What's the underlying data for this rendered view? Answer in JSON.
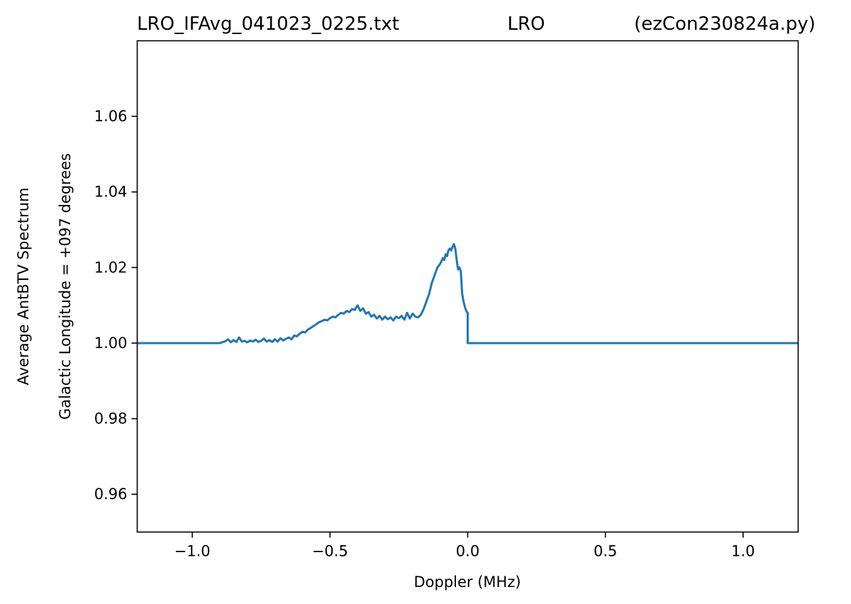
{
  "chart_data": {
    "type": "line",
    "title_left": "LRO_IFAvg_041023_0225.txt",
    "title_center": "LRO",
    "title_right": "(ezCon230824a.py)",
    "xlabel": "Doppler (MHz)",
    "ylabel_line1": "Average AntBTV Spectrum",
    "ylabel_line2": "Galactic Longitude = +097 degrees",
    "xlim": [
      -1.2,
      1.2
    ],
    "ylim": [
      0.95,
      1.08
    ],
    "xticks": [
      -1.0,
      -0.5,
      0.0,
      0.5,
      1.0
    ],
    "xtick_labels": [
      "−1.0",
      "−0.5",
      "0.0",
      "0.5",
      "1.0"
    ],
    "yticks": [
      0.96,
      0.98,
      1.0,
      1.02,
      1.04,
      1.06
    ],
    "ytick_labels": [
      "0.96",
      "0.98",
      "1.00",
      "1.02",
      "1.04",
      "1.06"
    ],
    "grid": false,
    "line_color": "#1f77b4",
    "series": [
      {
        "x": [
          -1.2,
          -0.9,
          -0.88,
          -0.87,
          -0.86,
          -0.85,
          -0.84,
          -0.83,
          -0.82,
          -0.81,
          -0.8,
          -0.79,
          -0.78,
          -0.77,
          -0.76,
          -0.75,
          -0.74,
          -0.73,
          -0.72,
          -0.71,
          -0.7,
          -0.69,
          -0.68,
          -0.67,
          -0.66,
          -0.65,
          -0.64,
          -0.63,
          -0.62,
          -0.61,
          -0.6,
          -0.59,
          -0.58,
          -0.57,
          -0.56,
          -0.55,
          -0.54,
          -0.53,
          -0.52,
          -0.51,
          -0.5,
          -0.49,
          -0.48,
          -0.47,
          -0.46,
          -0.45,
          -0.44,
          -0.43,
          -0.42,
          -0.41,
          -0.4,
          -0.39,
          -0.38,
          -0.37,
          -0.36,
          -0.35,
          -0.34,
          -0.33,
          -0.32,
          -0.31,
          -0.3,
          -0.29,
          -0.28,
          -0.27,
          -0.26,
          -0.25,
          -0.24,
          -0.23,
          -0.22,
          -0.21,
          -0.2,
          -0.19,
          -0.18,
          -0.17,
          -0.16,
          -0.15,
          -0.14,
          -0.13,
          -0.12,
          -0.11,
          -0.1,
          -0.09,
          -0.085,
          -0.08,
          -0.075,
          -0.07,
          -0.065,
          -0.06,
          -0.055,
          -0.05,
          -0.045,
          -0.04,
          -0.035,
          -0.03,
          -0.025,
          -0.02,
          -0.015,
          -0.01,
          -0.005,
          0.0,
          0.0,
          0.3,
          0.6,
          0.9,
          1.2
        ],
        "y": [
          1.0,
          1.0,
          1.0005,
          1.001,
          1.0002,
          1.0008,
          1.0003,
          1.0015,
          1.0004,
          1.0006,
          1.0002,
          1.0007,
          1.0004,
          1.0009,
          1.0003,
          1.0006,
          1.0012,
          1.0004,
          1.0008,
          1.0003,
          1.001,
          1.0004,
          1.0013,
          1.0007,
          1.0011,
          1.0015,
          1.001,
          1.002,
          1.0018,
          1.0025,
          1.003,
          1.0028,
          1.0036,
          1.004,
          1.0045,
          1.005,
          1.0055,
          1.0058,
          1.0062,
          1.006,
          1.0066,
          1.007,
          1.0068,
          1.0075,
          1.008,
          1.0078,
          1.0085,
          1.0082,
          1.009,
          1.0088,
          1.01,
          1.0085,
          1.0092,
          1.0078,
          1.0082,
          1.007,
          1.0075,
          1.0065,
          1.0072,
          1.0062,
          1.007,
          1.0063,
          1.0068,
          1.006,
          1.007,
          1.0066,
          1.0072,
          1.0062,
          1.008,
          1.0065,
          1.0078,
          1.007,
          1.0068,
          1.0075,
          1.009,
          1.011,
          1.013,
          1.016,
          1.018,
          1.02,
          1.021,
          1.0225,
          1.022,
          1.0235,
          1.023,
          1.0245,
          1.025,
          1.0245,
          1.0255,
          1.0262,
          1.025,
          1.022,
          1.0195,
          1.02,
          1.019,
          1.013,
          1.011,
          1.0095,
          1.0085,
          1.008,
          1.0,
          1.0,
          1.0,
          1.0,
          1.0
        ]
      }
    ]
  }
}
